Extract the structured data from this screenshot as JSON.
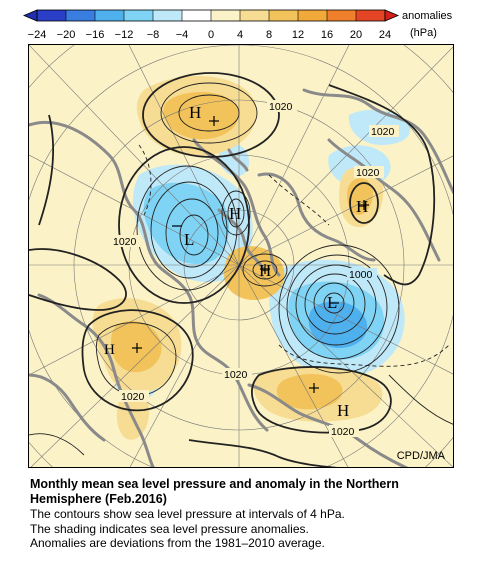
{
  "legend": {
    "title": "anomalies",
    "unit": "(hPa)",
    "ticks": [
      "−24",
      "−20",
      "−16",
      "−12",
      "−8",
      "−4",
      "0",
      "4",
      "8",
      "12",
      "16",
      "20",
      "24"
    ],
    "colors": [
      "#2b3ec8",
      "#3a7de0",
      "#4fb0ee",
      "#7fd3f4",
      "#bfe9f8",
      "#ffffff",
      "#fbf3c7",
      "#f7dd93",
      "#f2c35a",
      "#f1a93a",
      "#ef7f2a",
      "#e44524"
    ]
  },
  "map": {
    "credit": "CPD/JMA",
    "colors": {
      "land_border": "#8a8a8a",
      "contour": "#222222",
      "grid": "#777777",
      "positive": "#f2c35a",
      "negative": "#7fd3f4"
    },
    "centers": [
      {
        "type": "H",
        "label": "H"
      },
      {
        "type": "H",
        "label": "H"
      },
      {
        "type": "H",
        "label": "H"
      },
      {
        "type": "H",
        "label": "H"
      },
      {
        "type": "H",
        "label": "H"
      },
      {
        "type": "L",
        "label": "L"
      },
      {
        "type": "L",
        "label": "L"
      }
    ],
    "contour_labels": [
      "1020",
      "1020",
      "1020",
      "1020",
      "1020",
      "1020",
      "1020",
      "1000"
    ]
  },
  "caption": {
    "title_line1": "Monthly mean sea level pressure and anomaly in the Northern",
    "title_line2": "Hemisphere (Feb.2016)",
    "line1": "The contours show sea level pressure at intervals of 4 hPa.",
    "line2": "The shading indicates sea level pressure anomalies.",
    "line3": "Anomalies are deviations from the 1981–2010 average."
  }
}
